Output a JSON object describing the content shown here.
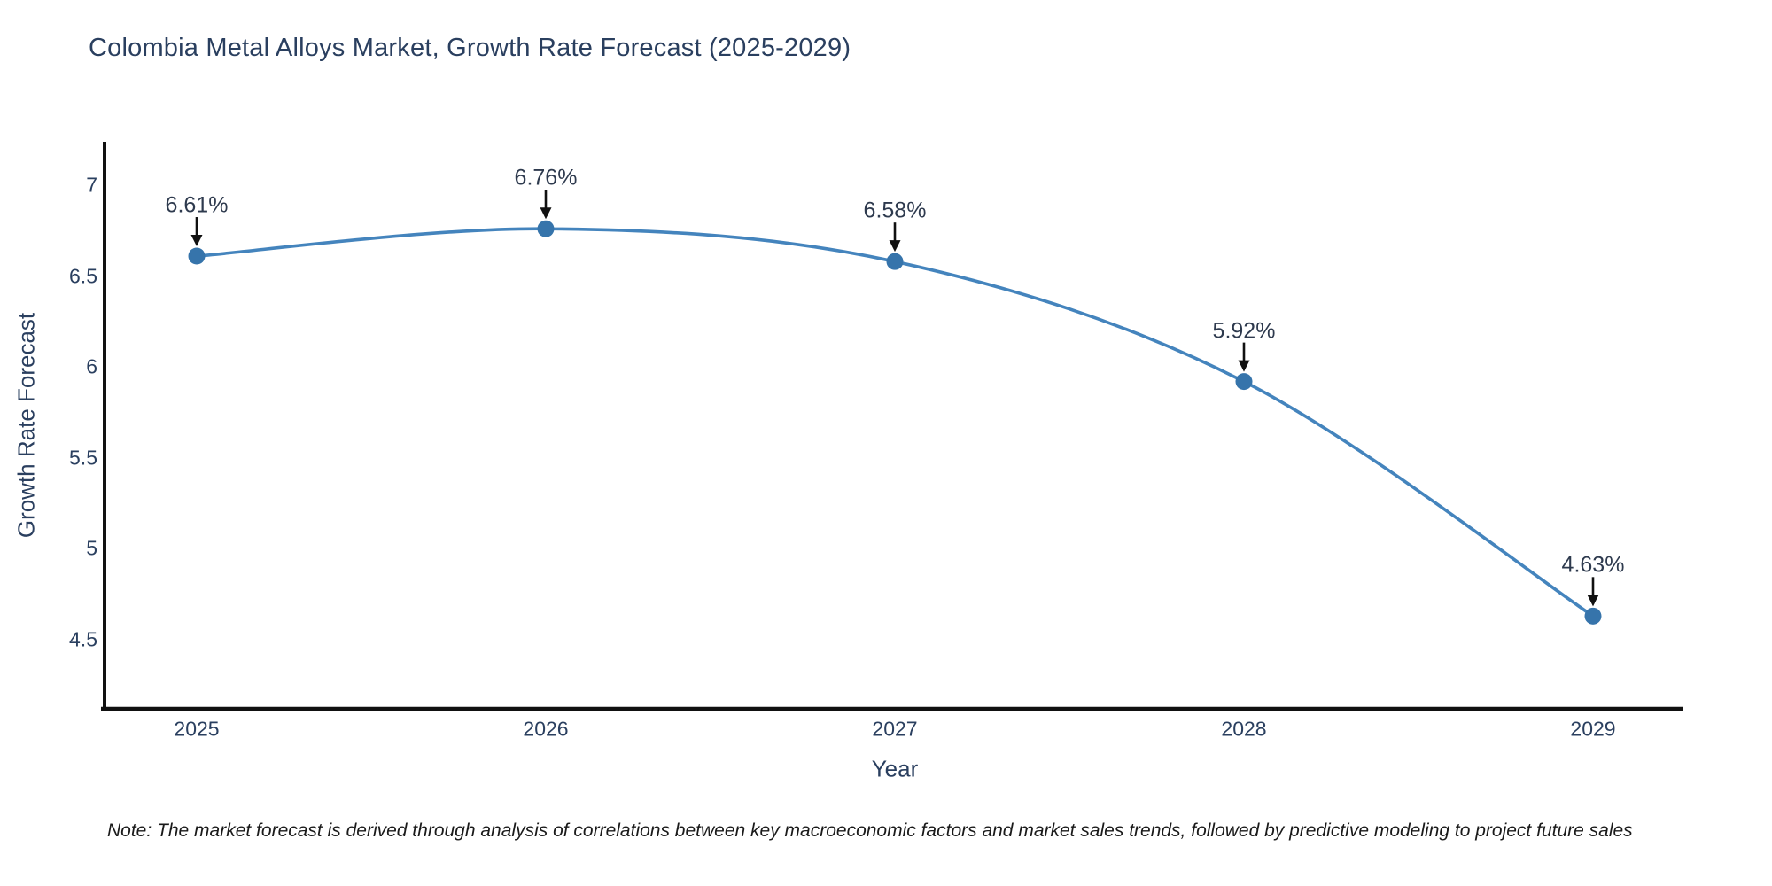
{
  "page": {
    "background": "#ffffff"
  },
  "chart_data": {
    "type": "line",
    "title": "Colombia Metal Alloys Market, Growth Rate Forecast (2025-2029)",
    "xlabel": "Year",
    "ylabel": "Growth Rate Forecast",
    "x": [
      2025,
      2026,
      2027,
      2028,
      2029
    ],
    "series": [
      {
        "name": "Growth Rate Forecast",
        "values": [
          6.61,
          6.76,
          6.58,
          5.92,
          4.63
        ]
      }
    ],
    "point_labels": [
      "6.61%",
      "6.76%",
      "6.58%",
      "5.92%",
      "4.63%"
    ],
    "xtick_labels": [
      "2025",
      "2026",
      "2027",
      "2028",
      "2029"
    ],
    "ytick_values": [
      4.5,
      5,
      5.5,
      6,
      6.5,
      7
    ],
    "ytick_labels": [
      "4.5",
      "5",
      "5.5",
      "6",
      "6.5",
      "7"
    ],
    "ylim": [
      4.12,
      7.24
    ],
    "grid": false,
    "legend_position": "none",
    "curve_style": "spline",
    "colors": {
      "line": "#4484bd",
      "marker": "#3674ab",
      "axis": "#111111",
      "annotation_arrow": "#111111",
      "text": "#2a3f5f",
      "annotation_text": "#2e3a4e"
    }
  },
  "note": "Note: The market forecast is derived through analysis of correlations between key macroeconomic factors and market sales trends, followed by predictive modeling to project future sales"
}
